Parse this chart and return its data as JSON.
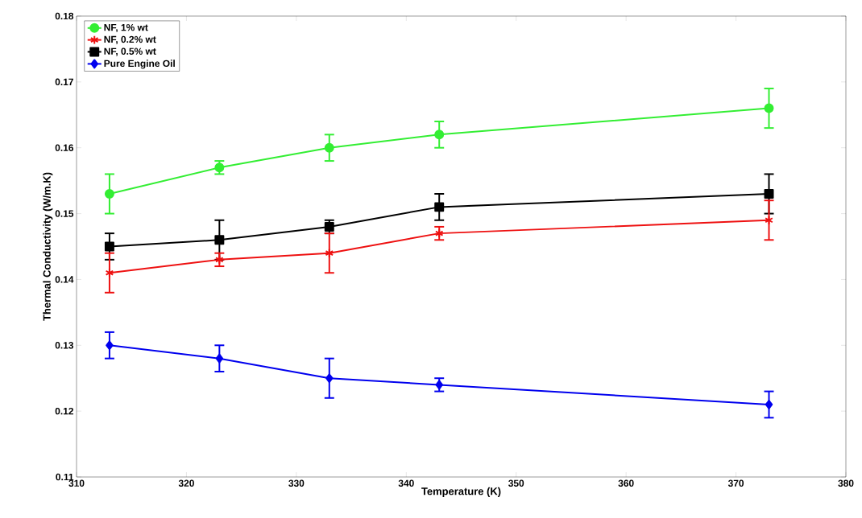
{
  "chart_data": {
    "type": "line",
    "xlabel": "Temperature (K)",
    "ylabel": "Thermal Conductivity (W/m.K)",
    "x": [
      313,
      323,
      333,
      343,
      373
    ],
    "series": [
      {
        "name": "NF, 1% wt",
        "color": "#33ee33",
        "marker": "circle",
        "values": [
          0.153,
          0.157,
          0.16,
          0.162,
          0.166
        ],
        "errors": [
          0.003,
          0.001,
          0.002,
          0.002,
          0.003
        ]
      },
      {
        "name": "NF, 0.2% wt",
        "color": "#ee1111",
        "marker": "cross",
        "values": [
          0.141,
          0.143,
          0.144,
          0.147,
          0.149
        ],
        "errors": [
          0.003,
          0.001,
          0.003,
          0.001,
          0.003
        ]
      },
      {
        "name": "NF, 0.5% wt",
        "color": "#000000",
        "marker": "square",
        "values": [
          0.145,
          0.146,
          0.148,
          0.151,
          0.153
        ],
        "errors": [
          0.002,
          0.003,
          0.001,
          0.002,
          0.003
        ]
      },
      {
        "name": "Pure Engine Oil",
        "color": "#0000ee",
        "marker": "diamond",
        "values": [
          0.13,
          0.128,
          0.125,
          0.124,
          0.121
        ],
        "errors": [
          0.002,
          0.002,
          0.003,
          0.001,
          0.002
        ]
      }
    ],
    "xlim": [
      310,
      380
    ],
    "xticks": [
      310,
      320,
      330,
      340,
      350,
      360,
      370,
      380
    ],
    "ylim": [
      0.11,
      0.18
    ],
    "yticks": [
      0.11,
      0.12,
      0.13,
      0.14,
      0.15,
      0.16,
      0.17,
      0.18
    ],
    "legend": "top left",
    "grid": false,
    "line_style": "solid"
  }
}
